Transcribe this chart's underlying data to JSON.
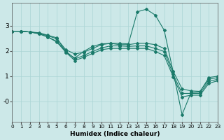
{
  "xlabel": "Humidex (Indice chaleur)",
  "bg_color": "#cce8e8",
  "line_color": "#1a7a6a",
  "grid_color": "#aad4d4",
  "xlim": [
    0,
    23
  ],
  "ylim": [
    -0.8,
    3.9
  ],
  "yticks": [
    0,
    1,
    2,
    3
  ],
  "ytick_labels": [
    "-0",
    "1",
    "2",
    "3"
  ],
  "xticks": [
    0,
    1,
    2,
    3,
    4,
    5,
    6,
    7,
    8,
    9,
    10,
    11,
    12,
    13,
    14,
    15,
    16,
    17,
    18,
    19,
    20,
    21,
    22,
    23
  ],
  "line1_y": [
    2.78,
    2.78,
    2.75,
    2.72,
    2.62,
    2.52,
    1.95,
    1.72,
    1.98,
    2.18,
    2.28,
    2.3,
    2.3,
    2.28,
    3.55,
    3.65,
    3.42,
    2.82,
    1.18,
    -0.52,
    0.35,
    0.38,
    0.95,
    1.0
  ],
  "line2_y": [
    2.78,
    2.78,
    2.75,
    2.7,
    2.6,
    2.48,
    2.05,
    1.88,
    1.95,
    2.1,
    2.25,
    2.3,
    2.25,
    2.25,
    2.3,
    2.3,
    2.25,
    2.1,
    1.2,
    0.5,
    0.42,
    0.4,
    0.88,
    0.95
  ],
  "line3_y": [
    2.78,
    2.78,
    2.75,
    2.68,
    2.55,
    2.38,
    2.0,
    1.68,
    1.82,
    1.98,
    2.12,
    2.2,
    2.2,
    2.18,
    2.2,
    2.2,
    2.1,
    1.98,
    1.08,
    0.32,
    0.32,
    0.32,
    0.8,
    0.88
  ],
  "line4_y": [
    2.78,
    2.78,
    2.75,
    2.68,
    2.55,
    2.35,
    1.95,
    1.62,
    1.75,
    1.9,
    2.05,
    2.1,
    2.1,
    2.1,
    2.1,
    2.1,
    1.98,
    1.82,
    0.98,
    0.18,
    0.25,
    0.25,
    0.72,
    0.82
  ]
}
